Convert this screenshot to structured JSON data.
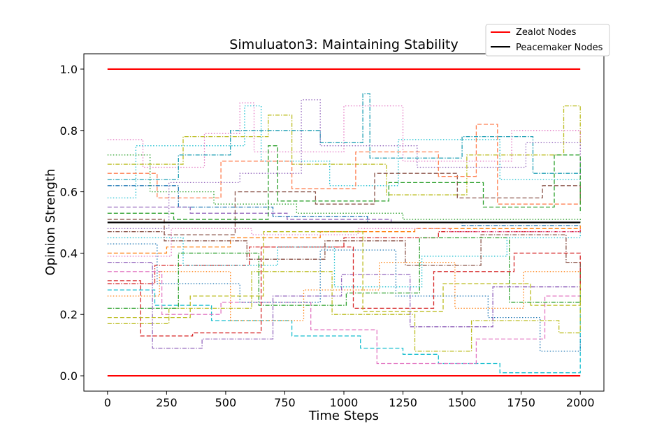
{
  "chart_data": {
    "type": "line",
    "title": "Simuluaton3: Maintaining Stability",
    "xlabel": "Time Steps",
    "ylabel": "Opinion Strength",
    "xlim": [
      -100,
      2100
    ],
    "ylim": [
      -0.05,
      1.05
    ],
    "xticks": [
      0,
      250,
      500,
      750,
      1000,
      1250,
      1500,
      1750,
      2000
    ],
    "yticks": [
      0.0,
      0.2,
      0.4,
      0.6,
      0.8,
      1.0
    ],
    "ytick_labels": [
      "0.0",
      "0.2",
      "0.4",
      "0.6",
      "0.8",
      "1.0"
    ],
    "grid": false,
    "legend_position": "top-right",
    "legend": [
      {
        "label": "Zealot Nodes",
        "color": "#ff0000"
      },
      {
        "label": "Peacemaker Nodes",
        "color": "#000000"
      }
    ],
    "fixed_lines": [
      {
        "name": "Zealot Nodes",
        "color": "#ff0000",
        "x": [
          0,
          2000
        ],
        "y": 1.0
      },
      {
        "name": "Zealot Nodes",
        "color": "#ff0000",
        "x": [
          0,
          2000
        ],
        "y": 0.0
      },
      {
        "name": "Peacemaker Nodes",
        "color": "#000000",
        "x": [
          0,
          2000
        ],
        "y": 0.5
      }
    ],
    "series": [
      {
        "color": "#1f77b4",
        "style": "dashdot",
        "points": [
          [
            0,
            0.62
          ],
          [
            300,
            0.55
          ],
          [
            700,
            0.52
          ],
          [
            1100,
            0.5
          ],
          [
            1500,
            0.49
          ],
          [
            2000,
            0.49
          ]
        ]
      },
      {
        "color": "#ff7f0e",
        "style": "dashed",
        "points": [
          [
            0,
            0.4
          ],
          [
            250,
            0.42
          ],
          [
            520,
            0.45
          ],
          [
            900,
            0.47
          ],
          [
            1300,
            0.48
          ],
          [
            2000,
            0.49
          ]
        ]
      },
      {
        "color": "#2ca02c",
        "style": "dotted",
        "points": [
          [
            0,
            0.72
          ],
          [
            180,
            0.6
          ],
          [
            450,
            0.56
          ],
          [
            800,
            0.53
          ],
          [
            1250,
            0.51
          ],
          [
            2000,
            0.5
          ]
        ]
      },
      {
        "color": "#d62728",
        "style": "dashdot",
        "points": [
          [
            0,
            0.3
          ],
          [
            200,
            0.36
          ],
          [
            600,
            0.42
          ],
          [
            1000,
            0.45
          ],
          [
            1400,
            0.47
          ],
          [
            2000,
            0.48
          ]
        ]
      },
      {
        "color": "#9467bd",
        "style": "dashed",
        "points": [
          [
            0,
            0.55
          ],
          [
            350,
            0.53
          ],
          [
            760,
            0.51
          ],
          [
            1200,
            0.5
          ],
          [
            2000,
            0.5
          ]
        ]
      },
      {
        "color": "#17becf",
        "style": "dotted",
        "points": [
          [
            0,
            0.58
          ],
          [
            120,
            0.75
          ],
          [
            580,
            0.88
          ],
          [
            650,
            0.7
          ],
          [
            940,
            0.62
          ],
          [
            1230,
            0.77
          ],
          [
            1660,
            0.64
          ],
          [
            2000,
            0.63
          ]
        ]
      },
      {
        "color": "#bcbd22",
        "style": "dashdot",
        "points": [
          [
            0,
            0.69
          ],
          [
            320,
            0.78
          ],
          [
            680,
            0.85
          ],
          [
            780,
            0.69
          ],
          [
            1180,
            0.59
          ],
          [
            1520,
            0.72
          ],
          [
            1930,
            0.88
          ],
          [
            2000,
            0.75
          ]
        ]
      },
      {
        "color": "#e377c2",
        "style": "dotted",
        "points": [
          [
            0,
            0.77
          ],
          [
            150,
            0.68
          ],
          [
            410,
            0.79
          ],
          [
            560,
            0.89
          ],
          [
            620,
            0.73
          ],
          [
            1000,
            0.88
          ],
          [
            1250,
            0.7
          ],
          [
            1710,
            0.8
          ],
          [
            2000,
            0.58
          ]
        ]
      },
      {
        "color": "#8c564b",
        "style": "dashed",
        "points": [
          [
            0,
            0.51
          ],
          [
            240,
            0.46
          ],
          [
            540,
            0.6
          ],
          [
            880,
            0.56
          ],
          [
            1130,
            0.66
          ],
          [
            1480,
            0.58
          ],
          [
            1840,
            0.62
          ],
          [
            2000,
            0.57
          ]
        ]
      },
      {
        "color": "#1f9fb4",
        "style": "dashdot",
        "points": [
          [
            0,
            0.64
          ],
          [
            300,
            0.72
          ],
          [
            520,
            0.8
          ],
          [
            900,
            0.76
          ],
          [
            1080,
            0.92
          ],
          [
            1110,
            0.71
          ],
          [
            1500,
            0.78
          ],
          [
            1800,
            0.66
          ],
          [
            2000,
            0.68
          ]
        ]
      },
      {
        "color": "#ff7f50",
        "style": "dashed",
        "points": [
          [
            0,
            0.66
          ],
          [
            210,
            0.58
          ],
          [
            480,
            0.7
          ],
          [
            780,
            0.61
          ],
          [
            1050,
            0.73
          ],
          [
            1400,
            0.65
          ],
          [
            1560,
            0.82
          ],
          [
            1650,
            0.56
          ],
          [
            2000,
            0.59
          ]
        ]
      },
      {
        "color": "#9467bd",
        "style": "dotted",
        "points": [
          [
            0,
            0.48
          ],
          [
            260,
            0.63
          ],
          [
            560,
            0.66
          ],
          [
            820,
            0.9
          ],
          [
            900,
            0.75
          ],
          [
            1310,
            0.68
          ],
          [
            1770,
            0.76
          ],
          [
            2000,
            0.64
          ]
        ]
      },
      {
        "color": "#2ca02c",
        "style": "dashed",
        "points": [
          [
            0,
            0.53
          ],
          [
            280,
            0.51
          ],
          [
            680,
            0.75
          ],
          [
            720,
            0.57
          ],
          [
            1190,
            0.63
          ],
          [
            1590,
            0.55
          ],
          [
            1890,
            0.72
          ],
          [
            2000,
            0.53
          ]
        ]
      },
      {
        "color": "#17becf",
        "style": "dashed",
        "points": [
          [
            0,
            0.28
          ],
          [
            200,
            0.23
          ],
          [
            440,
            0.18
          ],
          [
            780,
            0.13
          ],
          [
            1070,
            0.09
          ],
          [
            1250,
            0.07
          ],
          [
            1400,
            0.04
          ],
          [
            1660,
            0.01
          ],
          [
            1980,
            0.01
          ],
          [
            2000,
            0.24
          ]
        ]
      },
      {
        "color": "#e377c2",
        "style": "dashed",
        "points": [
          [
            0,
            0.34
          ],
          [
            230,
            0.2
          ],
          [
            480,
            0.24
          ],
          [
            860,
            0.15
          ],
          [
            1140,
            0.04
          ],
          [
            1560,
            0.12
          ],
          [
            1850,
            0.26
          ],
          [
            2000,
            0.24
          ]
        ]
      },
      {
        "color": "#bcbd22",
        "style": "dashdot",
        "points": [
          [
            0,
            0.17
          ],
          [
            260,
            0.22
          ],
          [
            610,
            0.34
          ],
          [
            950,
            0.2
          ],
          [
            1300,
            0.08
          ],
          [
            1540,
            0.18
          ],
          [
            1910,
            0.14
          ],
          [
            2000,
            0.26
          ]
        ]
      },
      {
        "color": "#ff7f0e",
        "style": "dotted",
        "points": [
          [
            0,
            0.26
          ],
          [
            220,
            0.34
          ],
          [
            520,
            0.18
          ],
          [
            830,
            0.28
          ],
          [
            1150,
            0.37
          ],
          [
            1470,
            0.22
          ],
          [
            1760,
            0.34
          ],
          [
            2000,
            0.32
          ]
        ]
      },
      {
        "color": "#9467bd",
        "style": "dashdot",
        "points": [
          [
            0,
            0.37
          ],
          [
            190,
            0.09
          ],
          [
            400,
            0.12
          ],
          [
            700,
            0.26
          ],
          [
            990,
            0.33
          ],
          [
            1280,
            0.16
          ],
          [
            1630,
            0.29
          ],
          [
            2000,
            0.36
          ]
        ]
      },
      {
        "color": "#1f77b4",
        "style": "dotted",
        "points": [
          [
            0,
            0.43
          ],
          [
            210,
            0.3
          ],
          [
            560,
            0.24
          ],
          [
            900,
            0.41
          ],
          [
            1220,
            0.26
          ],
          [
            1610,
            0.19
          ],
          [
            1830,
            0.08
          ],
          [
            2000,
            0.13
          ]
        ]
      },
      {
        "color": "#2ca02c",
        "style": "dashdot",
        "points": [
          [
            0,
            0.22
          ],
          [
            300,
            0.4
          ],
          [
            640,
            0.23
          ],
          [
            1010,
            0.27
          ],
          [
            1320,
            0.45
          ],
          [
            1700,
            0.24
          ],
          [
            2000,
            0.37
          ]
        ]
      },
      {
        "color": "#d62728",
        "style": "dashed",
        "points": [
          [
            0,
            0.31
          ],
          [
            140,
            0.13
          ],
          [
            360,
            0.14
          ],
          [
            650,
            0.42
          ],
          [
            1040,
            0.22
          ],
          [
            1380,
            0.34
          ],
          [
            1720,
            0.4
          ],
          [
            2000,
            0.28
          ]
        ]
      },
      {
        "color": "#17becf",
        "style": "dotted",
        "points": [
          [
            0,
            0.45
          ],
          [
            320,
            0.36
          ],
          [
            720,
            0.42
          ],
          [
            960,
            0.29
          ],
          [
            1330,
            0.39
          ],
          [
            1690,
            0.45
          ],
          [
            2000,
            0.47
          ]
        ]
      },
      {
        "color": "#8c564b",
        "style": "dashdot",
        "points": [
          [
            0,
            0.47
          ],
          [
            240,
            0.44
          ],
          [
            590,
            0.38
          ],
          [
            920,
            0.44
          ],
          [
            1260,
            0.36
          ],
          [
            1580,
            0.46
          ],
          [
            1940,
            0.37
          ],
          [
            2000,
            0.35
          ]
        ]
      },
      {
        "color": "#e377c2",
        "style": "dotted",
        "points": [
          [
            0,
            0.39
          ],
          [
            270,
            0.48
          ],
          [
            610,
            0.46
          ],
          [
            1060,
            0.48
          ],
          [
            1450,
            0.47
          ],
          [
            1800,
            0.47
          ],
          [
            2000,
            0.48
          ]
        ]
      },
      {
        "color": "#bcbd22",
        "style": "dashed",
        "points": [
          [
            0,
            0.19
          ],
          [
            350,
            0.26
          ],
          [
            660,
            0.47
          ],
          [
            1080,
            0.21
          ],
          [
            1420,
            0.3
          ],
          [
            1790,
            0.23
          ],
          [
            2000,
            0.3
          ]
        ]
      }
    ]
  }
}
